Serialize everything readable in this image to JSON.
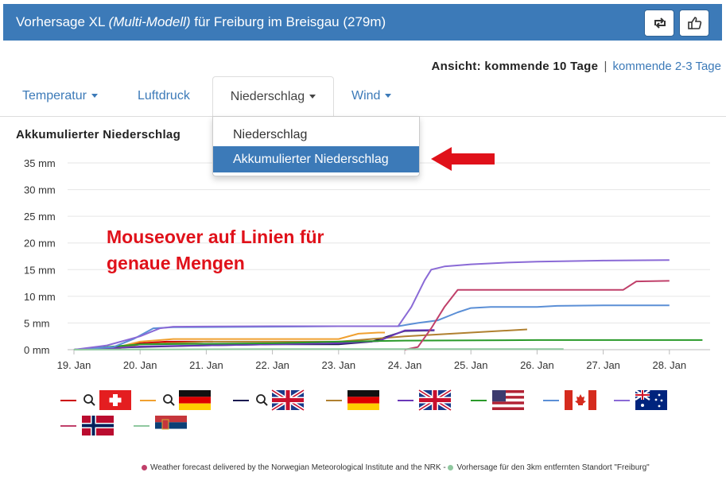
{
  "header": {
    "title_prefix": "Vorhersage XL",
    "title_model": "(Multi-Modell)",
    "title_suffix": "für Freiburg im Breisgau (279m)",
    "buttons": [
      {
        "icon": "repost-icon"
      },
      {
        "icon": "thumbs-up-icon"
      }
    ]
  },
  "view": {
    "label": "Ansicht: kommende 10 Tage",
    "separator": "|",
    "alt_link": "kommende 2-3 Tage"
  },
  "tabs": [
    {
      "label": "Temperatur",
      "dropdown": true
    },
    {
      "label": "Luftdruck",
      "dropdown": false
    },
    {
      "label": "Niederschlag",
      "dropdown": true,
      "active": true
    },
    {
      "label": "Wind",
      "dropdown": true
    }
  ],
  "dropdown": {
    "items": [
      {
        "label": "Niederschlag",
        "selected": false
      },
      {
        "label": "Akkumulierter Niederschlag",
        "selected": true
      }
    ]
  },
  "annotation": {
    "line1": "Mouseover auf Linien für",
    "line2": "genaue Mengen"
  },
  "colors": {
    "accent": "#3c7ab8",
    "annotation_red": "#e0111a"
  },
  "chart_data": {
    "type": "line",
    "title": "Akkumulierter Niederschlag",
    "y_ticks": [
      "0 mm",
      "5 mm",
      "10 mm",
      "15 mm",
      "20 mm",
      "25 mm",
      "30 mm",
      "35 mm"
    ],
    "ylim": [
      0,
      35
    ],
    "categories": [
      "19. Jan",
      "20. Jan",
      "21. Jan",
      "22. Jan",
      "23. Jan",
      "24. Jan",
      "25. Jan",
      "26. Jan",
      "27. Jan",
      "28. Jan"
    ],
    "grid": true,
    "series": [
      {
        "color": "#cc0000",
        "points": [
          [
            0,
            0
          ],
          [
            0.5,
            0.2
          ],
          [
            1,
            1.2
          ],
          [
            1.4,
            1.5
          ],
          [
            2,
            1.5
          ],
          [
            2.1,
            1.5
          ]
        ]
      },
      {
        "color": "#f0a030",
        "points": [
          [
            0,
            0
          ],
          [
            0.6,
            0.3
          ],
          [
            1,
            1.5
          ],
          [
            1.5,
            2
          ],
          [
            3,
            2
          ],
          [
            4,
            2
          ],
          [
            4.3,
            3
          ],
          [
            4.6,
            3.2
          ],
          [
            4.7,
            3.2
          ]
        ]
      },
      {
        "color": "#1a1a50",
        "points": [
          [
            0,
            0
          ],
          [
            0.5,
            0.3
          ],
          [
            1,
            0.5
          ],
          [
            2,
            0.8
          ],
          [
            3,
            1
          ],
          [
            4,
            1
          ],
          [
            4.5,
            1.5
          ],
          [
            5,
            3.5
          ],
          [
            5.45,
            3.6
          ]
        ]
      },
      {
        "color": "#b08030",
        "points": [
          [
            0,
            0
          ],
          [
            0.7,
            0.3
          ],
          [
            1,
            1
          ],
          [
            2,
            1.5
          ],
          [
            3,
            1.5
          ],
          [
            4,
            1.5
          ],
          [
            5,
            2.5
          ],
          [
            6,
            3.2
          ],
          [
            6.85,
            3.8
          ]
        ]
      },
      {
        "color": "#6a38b8",
        "points": [
          [
            0,
            0
          ],
          [
            0.6,
            0.3
          ],
          [
            1,
            0.6
          ],
          [
            2,
            0.8
          ],
          [
            3,
            1
          ],
          [
            4,
            1.2
          ],
          [
            4.6,
            1.6
          ],
          [
            5.0,
            3.6
          ],
          [
            5.45,
            3.7
          ]
        ]
      },
      {
        "color": "#2a9a2a",
        "points": [
          [
            0,
            0
          ],
          [
            0.8,
            0.8
          ],
          [
            1,
            1.0
          ],
          [
            2,
            1.1
          ],
          [
            3,
            1.2
          ],
          [
            4,
            1.5
          ],
          [
            5,
            1.7
          ],
          [
            7,
            1.8
          ],
          [
            9.5,
            1.8
          ]
        ]
      },
      {
        "color": "#5b8fd6",
        "points": [
          [
            0,
            0
          ],
          [
            0.6,
            0.5
          ],
          [
            0.9,
            2
          ],
          [
            1.2,
            4
          ],
          [
            1.5,
            4.2
          ],
          [
            3,
            4.3
          ],
          [
            4,
            4.4
          ],
          [
            4.9,
            4.4
          ],
          [
            5.2,
            5
          ],
          [
            5.5,
            5.5
          ],
          [
            5.8,
            7
          ],
          [
            6,
            7.8
          ],
          [
            6.3,
            8
          ],
          [
            7,
            8
          ],
          [
            7.3,
            8.2
          ],
          [
            8,
            8.3
          ],
          [
            9,
            8.3
          ]
        ]
      },
      {
        "color": "#8a6ad6",
        "points": [
          [
            0,
            0
          ],
          [
            0.5,
            0.8
          ],
          [
            1,
            2.5
          ],
          [
            1.3,
            4
          ],
          [
            1.5,
            4.3
          ],
          [
            3,
            4.4
          ],
          [
            4,
            4.4
          ],
          [
            4.9,
            4.4
          ],
          [
            5.1,
            8
          ],
          [
            5.3,
            13
          ],
          [
            5.4,
            15
          ],
          [
            5.6,
            15.6
          ],
          [
            6,
            16
          ],
          [
            6.5,
            16.3
          ],
          [
            7,
            16.5
          ],
          [
            8,
            16.7
          ],
          [
            9,
            16.8
          ]
        ]
      },
      {
        "color": "#c0406a",
        "points": [
          [
            5.0,
            0
          ],
          [
            5.2,
            0.5
          ],
          [
            5.4,
            4
          ],
          [
            5.6,
            8
          ],
          [
            5.8,
            11.2
          ],
          [
            6.1,
            11.2
          ],
          [
            7,
            11.2
          ],
          [
            8.3,
            11.2
          ],
          [
            8.5,
            12.8
          ],
          [
            9,
            12.9
          ]
        ]
      },
      {
        "color": "#8fc89f",
        "points": [
          [
            0,
            0
          ],
          [
            3,
            0.1
          ],
          [
            6,
            0.1
          ],
          [
            7.4,
            0.1
          ]
        ]
      }
    ],
    "legend": [
      {
        "color": "#cc0000",
        "flag": "ch",
        "hd": true
      },
      {
        "color": "#f0a030",
        "flag": "de",
        "hd": true
      },
      {
        "color": "#1a1a50",
        "flag": "gb",
        "hd": true
      },
      {
        "color": "#b08030",
        "flag": "de",
        "hd": false
      },
      {
        "color": "#6a38b8",
        "flag": "gb",
        "hd": false
      },
      {
        "color": "#2a9a2a",
        "flag": "us",
        "hd": false
      },
      {
        "color": "#5b8fd6",
        "flag": "ca",
        "hd": false
      },
      {
        "color": "#8a6ad6",
        "flag": "au",
        "hd": false
      },
      {
        "color": "#c0406a",
        "flag": "no",
        "hd": false
      },
      {
        "color": "#8fc89f",
        "flag": "rs",
        "hd": false
      }
    ]
  },
  "footer": {
    "source1": "Weather forecast delivered by the Norwegian Meteorological Institute and the NRK",
    "separator": " - ",
    "source2": "Vorhersage für den 3km entfernten Standort \"Freiburg\"",
    "dot1_color": "#c0406a",
    "dot2_color": "#8fc89f"
  }
}
